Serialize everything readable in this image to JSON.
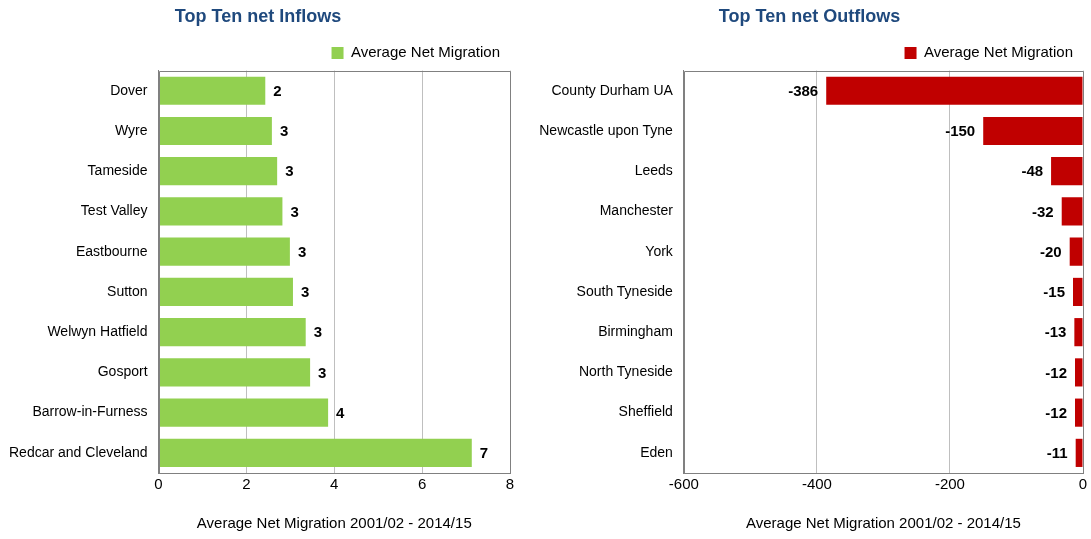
{
  "chart_data": [
    {
      "type": "bar",
      "orientation": "horizontal",
      "title": "Top Ten net Inflows",
      "xlabel": "Average Net Migration 2001/02 - 2014/15",
      "categories": [
        "Dover",
        "Wyre",
        "Tameside",
        "Test Valley",
        "Eastbourne",
        "Sutton",
        "Welwyn Hatfield",
        "Gosport",
        "Barrow-in-Furness",
        "Redcar and Cleveland"
      ],
      "series": [
        {
          "name": "Average Net Migration",
          "color": "#92d050",
          "values": [
            2.43,
            2.58,
            2.7,
            2.82,
            2.99,
            3.06,
            3.35,
            3.45,
            3.86,
            7.13
          ],
          "value_labels": [
            "2",
            "3",
            "3",
            "3",
            "3",
            "3",
            "3",
            "3",
            "4",
            "7"
          ]
        }
      ],
      "xlim": [
        0,
        8
      ],
      "xticks": [
        0,
        2,
        4,
        6,
        8
      ],
      "grid": "x",
      "legend": "top right"
    },
    {
      "type": "bar",
      "orientation": "horizontal",
      "title": "Top Ten net Outflows",
      "xlabel": "Average Net Migration 2001/02 - 2014/15",
      "categories": [
        "County Durham UA",
        "Newcastle upon Tyne",
        "Leeds",
        "Manchester",
        "York",
        "South Tyneside",
        "Birmingham",
        "North Tyneside",
        "Sheffield",
        "Eden"
      ],
      "series": [
        {
          "name": "Average Net Migration",
          "color": "#c00000",
          "values": [
            -386,
            -150,
            -48,
            -32,
            -20,
            -15,
            -13,
            -12,
            -12,
            -11
          ]
        }
      ],
      "xlim": [
        -600,
        0
      ],
      "xticks": [
        -600,
        -400,
        -200,
        0
      ],
      "grid": "x",
      "legend": "top right",
      "data_labels": true
    }
  ]
}
